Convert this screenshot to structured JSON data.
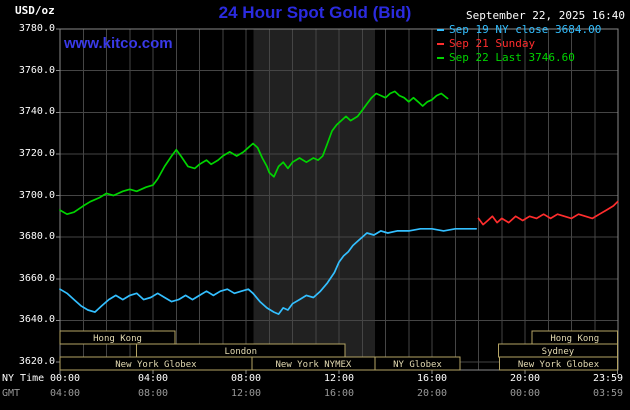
{
  "header": {
    "units": "USD/oz",
    "title": "24 Hour Spot Gold (Bid)",
    "datetime": "September 22, 2025 16:40",
    "watermark": "www.kitco.com"
  },
  "legend": {
    "items": [
      {
        "label": "Sep 19 NY close 3684.00",
        "color": "#33bfff"
      },
      {
        "label": "Sep 21 Sunday",
        "color": "#ff2d2d"
      },
      {
        "label": "Sep 22 Last 3746.60",
        "color": "#00d400"
      }
    ]
  },
  "axes": {
    "ny_label": "NY Time",
    "gmt_label": "GMT",
    "y_ticks": [
      "3780.0",
      "3760.0",
      "3740.0",
      "3720.0",
      "3700.0",
      "3680.0",
      "3660.0",
      "3640.0",
      "3620.0"
    ],
    "x_ticks": [
      {
        "hour": 0,
        "ny": "00:00",
        "gmt": "04:00"
      },
      {
        "hour": 4,
        "ny": "04:00",
        "gmt": "08:00"
      },
      {
        "hour": 8,
        "ny": "08:00",
        "gmt": "12:00"
      },
      {
        "hour": 12,
        "ny": "12:00",
        "gmt": "16:00"
      },
      {
        "hour": 16,
        "ny": "16:00",
        "gmt": "20:00"
      },
      {
        "hour": 20,
        "ny": "20:00",
        "gmt": "00:00"
      },
      {
        "hour": 23.983,
        "ny": "23:59",
        "gmt": "03:59"
      }
    ]
  },
  "chart_data": {
    "type": "line",
    "title": "24 Hour Spot Gold (Bid)",
    "ylabel": "USD/oz",
    "xlabel": "NY Time (hours)",
    "xlim": [
      0,
      24
    ],
    "ylim": [
      3620,
      3780
    ],
    "y_grid_step": 20,
    "x_grid_step_hours": 1,
    "floor_session_band_hours": [
      8.33,
      13.55
    ],
    "series": [
      {
        "name": "Sep 19 NY close",
        "close_value": 3684.0,
        "color": "#33bfff",
        "points": [
          [
            0,
            3655
          ],
          [
            0.3,
            3653
          ],
          [
            0.6,
            3650
          ],
          [
            0.9,
            3647
          ],
          [
            1.2,
            3645
          ],
          [
            1.5,
            3644
          ],
          [
            1.8,
            3647
          ],
          [
            2.1,
            3650
          ],
          [
            2.4,
            3652
          ],
          [
            2.7,
            3650
          ],
          [
            3,
            3652
          ],
          [
            3.3,
            3653
          ],
          [
            3.6,
            3650
          ],
          [
            3.9,
            3651
          ],
          [
            4.2,
            3653
          ],
          [
            4.5,
            3651
          ],
          [
            4.8,
            3649
          ],
          [
            5.1,
            3650
          ],
          [
            5.4,
            3652
          ],
          [
            5.7,
            3650
          ],
          [
            6,
            3652
          ],
          [
            6.3,
            3654
          ],
          [
            6.6,
            3652
          ],
          [
            6.9,
            3654
          ],
          [
            7.2,
            3655
          ],
          [
            7.5,
            3653
          ],
          [
            7.8,
            3654
          ],
          [
            8.1,
            3655
          ],
          [
            8.3,
            3653
          ],
          [
            8.6,
            3649
          ],
          [
            8.9,
            3646
          ],
          [
            9.2,
            3644
          ],
          [
            9.4,
            3643
          ],
          [
            9.6,
            3646
          ],
          [
            9.8,
            3645
          ],
          [
            10,
            3648
          ],
          [
            10.3,
            3650
          ],
          [
            10.6,
            3652
          ],
          [
            10.9,
            3651
          ],
          [
            11.2,
            3654
          ],
          [
            11.5,
            3658
          ],
          [
            11.8,
            3663
          ],
          [
            12,
            3668
          ],
          [
            12.2,
            3671
          ],
          [
            12.4,
            3673
          ],
          [
            12.6,
            3676
          ],
          [
            12.8,
            3678
          ],
          [
            13,
            3680
          ],
          [
            13.2,
            3682
          ],
          [
            13.5,
            3681
          ],
          [
            13.8,
            3683
          ],
          [
            14.1,
            3682
          ],
          [
            14.5,
            3683
          ],
          [
            15,
            3683
          ],
          [
            15.5,
            3684
          ],
          [
            16,
            3684
          ],
          [
            16.5,
            3683
          ],
          [
            17,
            3684
          ],
          [
            17.9,
            3684
          ]
        ]
      },
      {
        "name": "Sep 21 Sunday",
        "color": "#ff2d2d",
        "points": [
          [
            18,
            3689
          ],
          [
            18.2,
            3686
          ],
          [
            18.4,
            3688
          ],
          [
            18.6,
            3690
          ],
          [
            18.8,
            3687
          ],
          [
            19,
            3689
          ],
          [
            19.3,
            3687
          ],
          [
            19.6,
            3690
          ],
          [
            19.9,
            3688
          ],
          [
            20.2,
            3690
          ],
          [
            20.5,
            3689
          ],
          [
            20.8,
            3691
          ],
          [
            21.1,
            3689
          ],
          [
            21.4,
            3691
          ],
          [
            21.7,
            3690
          ],
          [
            22,
            3689
          ],
          [
            22.3,
            3691
          ],
          [
            22.6,
            3690
          ],
          [
            22.9,
            3689
          ],
          [
            23.2,
            3691
          ],
          [
            23.5,
            3693
          ],
          [
            23.8,
            3695
          ],
          [
            23.983,
            3697
          ]
        ]
      },
      {
        "name": "Sep 22 Last",
        "last_value": 3746.6,
        "color": "#00d400",
        "points": [
          [
            0,
            3693
          ],
          [
            0.3,
            3691
          ],
          [
            0.6,
            3692
          ],
          [
            1,
            3695
          ],
          [
            1.3,
            3697
          ],
          [
            1.7,
            3699
          ],
          [
            2,
            3701
          ],
          [
            2.3,
            3700
          ],
          [
            2.7,
            3702
          ],
          [
            3,
            3703
          ],
          [
            3.3,
            3702
          ],
          [
            3.7,
            3704
          ],
          [
            4,
            3705
          ],
          [
            4.2,
            3708
          ],
          [
            4.5,
            3714
          ],
          [
            4.8,
            3719
          ],
          [
            5,
            3722
          ],
          [
            5.2,
            3719
          ],
          [
            5.5,
            3714
          ],
          [
            5.8,
            3713
          ],
          [
            6,
            3715
          ],
          [
            6.3,
            3717
          ],
          [
            6.5,
            3715
          ],
          [
            6.8,
            3717
          ],
          [
            7,
            3719
          ],
          [
            7.3,
            3721
          ],
          [
            7.6,
            3719
          ],
          [
            7.9,
            3721
          ],
          [
            8.1,
            3723
          ],
          [
            8.3,
            3725
          ],
          [
            8.5,
            3723
          ],
          [
            8.7,
            3718
          ],
          [
            8.9,
            3714
          ],
          [
            9,
            3711
          ],
          [
            9.2,
            3709
          ],
          [
            9.4,
            3714
          ],
          [
            9.6,
            3716
          ],
          [
            9.8,
            3713
          ],
          [
            10,
            3716
          ],
          [
            10.3,
            3718
          ],
          [
            10.6,
            3716
          ],
          [
            10.9,
            3718
          ],
          [
            11.1,
            3717
          ],
          [
            11.3,
            3719
          ],
          [
            11.5,
            3725
          ],
          [
            11.7,
            3731
          ],
          [
            11.9,
            3734
          ],
          [
            12.1,
            3736
          ],
          [
            12.3,
            3738
          ],
          [
            12.5,
            3736
          ],
          [
            12.8,
            3738
          ],
          [
            13,
            3741
          ],
          [
            13.2,
            3744
          ],
          [
            13.4,
            3747
          ],
          [
            13.6,
            3749
          ],
          [
            13.8,
            3748
          ],
          [
            14,
            3747
          ],
          [
            14.2,
            3749
          ],
          [
            14.4,
            3750
          ],
          [
            14.6,
            3748
          ],
          [
            14.8,
            3747
          ],
          [
            15,
            3745
          ],
          [
            15.2,
            3747
          ],
          [
            15.4,
            3745
          ],
          [
            15.6,
            3743
          ],
          [
            15.8,
            3745
          ],
          [
            16,
            3746
          ],
          [
            16.2,
            3748
          ],
          [
            16.4,
            3749
          ],
          [
            16.67,
            3746.6
          ]
        ]
      }
    ],
    "sessions": [
      {
        "row": 0,
        "label": "Hong Kong",
        "start_hour": 0,
        "end_hour": 4.95
      },
      {
        "row": 0,
        "label": "Hong Kong",
        "start_hour": 20.3,
        "end_hour": 23.983
      },
      {
        "row": 1,
        "label": "London",
        "start_hour": 3.3,
        "end_hour": 12.25
      },
      {
        "row": 1,
        "label": "Sydney",
        "start_hour": 18.85,
        "end_hour": 23.983
      },
      {
        "row": 2,
        "label": "New York Globex",
        "start_hour": 0,
        "end_hour": 8.25
      },
      {
        "row": 2,
        "label": "New York NYMEX",
        "start_hour": 8.25,
        "end_hour": 13.55
      },
      {
        "row": 2,
        "label": "NY Globex",
        "start_hour": 13.55,
        "end_hour": 17.2
      },
      {
        "row": 2,
        "label": "New York Globex",
        "start_hour": 18.9,
        "end_hour": 23.983
      }
    ],
    "colors": {
      "background": "#000000",
      "plot_border": "#888888",
      "grid": "#454545",
      "floor_band": "#212121",
      "session_outline": "#b3a365",
      "session_text": "#e3dab2",
      "axis_text_ny": "#ffffff",
      "axis_text_gmt": "#999999",
      "title": "#2b2bdf",
      "watermark": "#3a3ae8"
    }
  }
}
